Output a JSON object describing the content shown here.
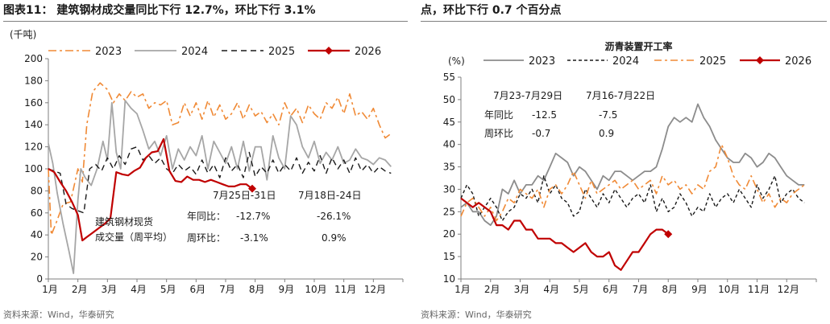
{
  "left": {
    "header": "图表11：  建筑钢材成交量同比下行 12.7%，环比下行 3.1%",
    "source": "资料来源：Wind，华泰研究",
    "chart_data": {
      "type": "line",
      "title": "",
      "ylabel": "(千吨)",
      "ylim": [
        0,
        200
      ],
      "yticks": [
        0,
        20,
        40,
        60,
        80,
        100,
        120,
        140,
        160,
        180,
        200
      ],
      "x_tick_labels": [
        "1月",
        "2月",
        "3月",
        "4月",
        "5月",
        "6月",
        "7月",
        "8月",
        "9月",
        "10月",
        "11月",
        "12月"
      ],
      "x_range": [
        1,
        13
      ],
      "legend": "top",
      "series": [
        {
          "name": "2023",
          "color": "#f08a36",
          "dash": "10,4,3,4",
          "width": 1.6,
          "marker": false,
          "x": [
            1.0,
            1.1,
            1.25,
            1.5,
            1.75,
            2.0,
            2.15,
            2.3,
            2.5,
            2.75,
            3.0,
            3.2,
            3.4,
            3.6,
            3.8,
            4.0,
            4.2,
            4.4,
            4.6,
            4.8,
            5.0,
            5.2,
            5.4,
            5.6,
            5.8,
            6.0,
            6.2,
            6.4,
            6.6,
            6.8,
            7.0,
            7.2,
            7.4,
            7.6,
            7.8,
            8.0,
            8.2,
            8.4,
            8.6,
            8.8,
            9.0,
            9.2,
            9.4,
            9.6,
            9.8,
            10.0,
            10.2,
            10.4,
            10.6,
            10.8,
            11.0,
            11.2,
            11.4,
            11.6,
            11.8,
            12.0,
            12.2,
            12.4,
            12.6
          ],
          "y": [
            100,
            40,
            50,
            68,
            70,
            100,
            88,
            140,
            170,
            178,
            172,
            160,
            168,
            162,
            170,
            165,
            168,
            155,
            160,
            158,
            162,
            140,
            142,
            160,
            148,
            160,
            145,
            162,
            147,
            158,
            145,
            150,
            160,
            145,
            158,
            148,
            152,
            142,
            150,
            140,
            160,
            148,
            155,
            142,
            158,
            150,
            145,
            160,
            155,
            165,
            150,
            168,
            148,
            152,
            145,
            155,
            140,
            128,
            132
          ]
        },
        {
          "name": "2024",
          "color": "#a6a6a6",
          "dash": "",
          "width": 1.8,
          "marker": false,
          "x": [
            1.0,
            1.15,
            1.3,
            1.5,
            1.7,
            1.85,
            2.0,
            2.1,
            2.25,
            2.45,
            2.65,
            2.85,
            3.0,
            3.15,
            3.3,
            3.45,
            3.6,
            3.8,
            4.0,
            4.2,
            4.4,
            4.6,
            4.8,
            5.0,
            5.2,
            5.4,
            5.6,
            5.8,
            6.0,
            6.2,
            6.4,
            6.6,
            6.8,
            7.0,
            7.2,
            7.4,
            7.6,
            7.8,
            8.0,
            8.2,
            8.4,
            8.6,
            8.8,
            9.0,
            9.2,
            9.4,
            9.6,
            9.8,
            10.0,
            10.2,
            10.4,
            10.6,
            10.8,
            11.0,
            11.2,
            11.4,
            11.6,
            11.8,
            12.0,
            12.2,
            12.4,
            12.6
          ],
          "y": [
            123,
            105,
            78,
            50,
            25,
            5,
            72,
            100,
            92,
            85,
            100,
            125,
            108,
            160,
            115,
            100,
            162,
            155,
            150,
            135,
            118,
            125,
            112,
            130,
            100,
            118,
            108,
            120,
            112,
            130,
            100,
            125,
            115,
            105,
            120,
            100,
            125,
            98,
            120,
            120,
            90,
            130,
            110,
            100,
            148,
            140,
            120,
            110,
            125,
            105,
            115,
            108,
            120,
            105,
            108,
            118,
            110,
            108,
            104,
            110,
            108,
            102
          ]
        },
        {
          "name": "2025",
          "color": "#1a1a1a",
          "dash": "7,5",
          "width": 1.4,
          "marker": false,
          "x": [
            1.0,
            1.2,
            1.4,
            1.6,
            1.8,
            2.0,
            2.2,
            2.4,
            2.6,
            2.8,
            3.0,
            3.2,
            3.4,
            3.6,
            3.8,
            4.0,
            4.2,
            4.4,
            4.6,
            4.8,
            5.0,
            5.2,
            5.4,
            5.6,
            5.8,
            6.0,
            6.2,
            6.4,
            6.6,
            6.8,
            7.0,
            7.2,
            7.4,
            7.6,
            7.8,
            8.0,
            8.2,
            8.4,
            8.6,
            8.8,
            9.0,
            9.2,
            9.4,
            9.6,
            9.8,
            10.0,
            10.2,
            10.4,
            10.6,
            10.8,
            11.0,
            11.2,
            11.4,
            11.6,
            11.8,
            12.0,
            12.2,
            12.4,
            12.6
          ],
          "y": [
            100,
            98,
            96,
            68,
            64,
            62,
            60,
            100,
            104,
            98,
            110,
            100,
            112,
            104,
            118,
            120,
            108,
            112,
            105,
            110,
            100,
            96,
            104,
            98,
            102,
            95,
            108,
            96,
            104,
            92,
            110,
            98,
            104,
            92,
            115,
            93,
            102,
            96,
            108,
            96,
            104,
            98,
            110,
            96,
            106,
            98,
            112,
            96,
            110,
            100,
            108,
            96,
            110,
            98,
            104,
            96,
            102,
            98,
            96
          ]
        },
        {
          "name": "2026",
          "color": "#c00000",
          "dash": "",
          "width": 2.2,
          "marker": true,
          "x": [
            1.0,
            1.2,
            1.4,
            1.6,
            1.8,
            2.0,
            2.15,
            2.3,
            2.5,
            2.7,
            2.9,
            3.1,
            3.3,
            3.5,
            3.7,
            3.9,
            4.1,
            4.3,
            4.5,
            4.7,
            4.9,
            5.1,
            5.3,
            5.5,
            5.7,
            5.9,
            6.1,
            6.3,
            6.5,
            6.7,
            6.9,
            7.1,
            7.3,
            7.5,
            7.7,
            7.9
          ],
          "y": [
            100,
            97,
            88,
            80,
            70,
            58,
            35,
            38,
            42,
            46,
            50,
            55,
            97,
            95,
            94,
            98,
            101,
            110,
            115,
            116,
            127,
            98,
            89,
            88,
            93,
            90,
            90,
            88,
            90,
            88,
            86,
            84,
            84,
            86,
            86,
            82
          ]
        }
      ],
      "annotations": {
        "label": "建筑钢材现货\n成交量（周平均）",
        "col1_header": "7月25日-31日",
        "col2_header": "7月18日-24日",
        "row1_label": "年同比：",
        "row1_v1": "-12.7%",
        "row1_v2": "-26.1%",
        "row2_label": "周环比：",
        "row2_v1": "-3.1%",
        "row2_v2": "0.9%"
      }
    }
  },
  "right": {
    "header": "点，环比下行 0.7 个百分点",
    "source": "资料来源：Wind，华泰研究",
    "chart_data": {
      "type": "line",
      "title": "沥青装置开工率",
      "ylabel": "(%)",
      "ylim": [
        10,
        55
      ],
      "yticks": [
        10,
        15,
        20,
        25,
        30,
        35,
        40,
        45,
        50,
        55
      ],
      "x_tick_labels": [
        "1月",
        "2月",
        "3月",
        "4月",
        "5月",
        "6月",
        "7月",
        "8月",
        "9月",
        "10月",
        "11月",
        "12月"
      ],
      "x_range": [
        1,
        13
      ],
      "legend": "top",
      "series": [
        {
          "name": "2023",
          "color": "#8c8c8c",
          "dash": "",
          "width": 1.8,
          "marker": false,
          "x": [
            1.0,
            1.2,
            1.4,
            1.6,
            1.8,
            2.0,
            2.2,
            2.4,
            2.6,
            2.8,
            3.0,
            3.2,
            3.4,
            3.6,
            3.8,
            4.0,
            4.2,
            4.4,
            4.6,
            4.8,
            5.0,
            5.2,
            5.4,
            5.6,
            5.8,
            6.0,
            6.2,
            6.4,
            6.6,
            6.8,
            7.0,
            7.2,
            7.4,
            7.6,
            7.8,
            8.0,
            8.2,
            8.4,
            8.6,
            8.8,
            9.0,
            9.2,
            9.4,
            9.6,
            9.8,
            10.0,
            10.2,
            10.4,
            10.6,
            10.8,
            11.0,
            11.2,
            11.4,
            11.6,
            11.8,
            12.0,
            12.2,
            12.4,
            12.6
          ],
          "y": [
            26,
            27,
            25,
            25,
            23,
            22,
            24,
            30,
            29,
            32,
            29,
            31,
            31,
            33,
            32,
            35,
            38,
            37,
            36,
            33,
            35,
            34,
            32,
            30,
            33,
            32,
            34,
            34,
            33,
            32,
            33,
            34,
            34,
            35,
            39,
            44,
            46,
            45,
            46,
            45,
            49,
            46,
            44,
            41,
            39,
            37,
            36,
            36,
            38,
            37,
            35,
            36,
            38,
            37,
            35,
            33,
            32,
            31,
            31
          ]
        },
        {
          "name": "2024",
          "color": "#1a1a1a",
          "dash": "4,3",
          "width": 1.4,
          "marker": false,
          "x": [
            1.0,
            1.2,
            1.4,
            1.6,
            1.8,
            2.0,
            2.2,
            2.4,
            2.6,
            2.8,
            3.0,
            3.2,
            3.4,
            3.6,
            3.8,
            4.0,
            4.2,
            4.4,
            4.6,
            4.8,
            5.0,
            5.2,
            5.4,
            5.6,
            5.8,
            6.0,
            6.2,
            6.4,
            6.6,
            6.8,
            7.0,
            7.2,
            7.4,
            7.6,
            7.8,
            8.0,
            8.2,
            8.4,
            8.6,
            8.8,
            9.0,
            9.2,
            9.4,
            9.6,
            9.8,
            10.0,
            10.2,
            10.4,
            10.6,
            10.8,
            11.0,
            11.2,
            11.4,
            11.6,
            11.8,
            12.0,
            12.2,
            12.4,
            12.6
          ],
          "y": [
            28,
            31,
            29,
            24,
            26,
            28,
            26,
            23,
            25,
            26,
            29,
            28,
            30,
            27,
            33,
            29,
            31,
            28,
            27,
            24,
            25,
            30,
            28,
            26,
            29,
            27,
            30,
            28,
            26,
            28,
            29,
            27,
            31,
            25,
            28,
            25,
            26,
            29,
            27,
            24,
            26,
            25,
            29,
            26,
            28,
            29,
            27,
            30,
            28,
            26,
            31,
            28,
            30,
            33,
            27,
            29,
            30,
            28,
            27
          ]
        },
        {
          "name": "2025",
          "color": "#f08a36",
          "dash": "9,4,3,4",
          "width": 1.6,
          "marker": false,
          "x": [
            1.0,
            1.2,
            1.4,
            1.6,
            1.8,
            2.0,
            2.2,
            2.4,
            2.6,
            2.8,
            3.0,
            3.2,
            3.4,
            3.6,
            3.8,
            4.0,
            4.2,
            4.4,
            4.6,
            4.8,
            5.0,
            5.2,
            5.4,
            5.6,
            5.8,
            6.0,
            6.2,
            6.4,
            6.6,
            6.8,
            7.0,
            7.2,
            7.4,
            7.6,
            7.8,
            8.0,
            8.2,
            8.4,
            8.6,
            8.8,
            9.0,
            9.2,
            9.4,
            9.6,
            9.8,
            10.0,
            10.2,
            10.4,
            10.6,
            10.8,
            11.0,
            11.2,
            11.4,
            11.6,
            11.8,
            12.0,
            12.2,
            12.4,
            12.6
          ],
          "y": [
            24,
            27,
            28,
            26,
            24,
            26,
            23,
            25,
            28,
            27,
            30,
            29,
            28,
            30,
            26,
            30,
            31,
            29,
            31,
            34,
            31,
            28,
            32,
            29,
            30,
            31,
            32,
            30,
            31,
            32,
            30,
            31,
            32,
            29,
            33,
            31,
            32,
            30,
            31,
            29,
            31,
            30,
            34,
            35,
            40,
            37,
            33,
            31,
            30,
            33,
            30,
            27,
            29,
            26,
            28,
            27,
            29,
            30,
            31
          ]
        },
        {
          "name": "2026",
          "color": "#c00000",
          "dash": "",
          "width": 2.2,
          "marker": true,
          "x": [
            1.0,
            1.2,
            1.4,
            1.6,
            1.8,
            2.0,
            2.2,
            2.4,
            2.6,
            2.8,
            3.0,
            3.2,
            3.4,
            3.6,
            3.8,
            4.0,
            4.2,
            4.4,
            4.6,
            4.8,
            5.0,
            5.2,
            5.4,
            5.6,
            5.8,
            6.0,
            6.2,
            6.4,
            6.6,
            6.8,
            7.0,
            7.2,
            7.4,
            7.6,
            7.8,
            8.0
          ],
          "y": [
            28,
            27,
            26,
            27,
            26,
            25,
            22,
            22,
            21,
            23,
            23,
            21,
            21,
            19,
            19,
            19,
            18,
            18,
            17,
            16,
            17,
            18,
            16,
            15,
            15,
            16,
            13,
            12,
            14,
            16,
            16,
            18,
            20,
            21,
            21,
            20
          ]
        }
      ],
      "annotations": {
        "col1_header": "7月23-7月29日",
        "col2_header": "7月16-7月22日",
        "row1_label": "年同比",
        "row1_v1": "-12.5",
        "row1_v2": "-7.5",
        "row2_label": "周环比",
        "row2_v1": "-0.7",
        "row2_v2": "0.9"
      }
    }
  }
}
